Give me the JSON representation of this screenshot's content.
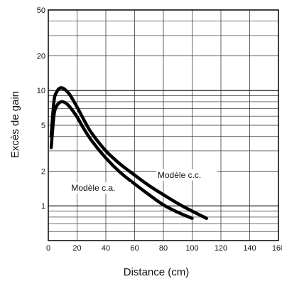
{
  "chart_data": {
    "type": "line",
    "title": "",
    "xlabel": "Distance (cm)",
    "ylabel": "Excès de gain",
    "x_ticks": [
      "0",
      "20",
      "40",
      "60",
      "80",
      "100",
      "120",
      "140",
      "160"
    ],
    "y_ticks": [
      "1",
      "2",
      "5",
      "10",
      "20",
      "50"
    ],
    "xlim": [
      0,
      160
    ],
    "ylim": [
      0.5,
      50
    ],
    "y_scale": "log",
    "grid": true,
    "series": [
      {
        "name": "Modèle c.c.",
        "x": [
          2,
          4,
          6,
          8,
          10,
          12,
          15,
          20,
          25,
          30,
          40,
          50,
          60,
          70,
          80,
          90,
          100,
          110
        ],
        "y": [
          4,
          8.2,
          9.8,
          10.5,
          10.5,
          10.1,
          9.2,
          7.2,
          5.5,
          4.3,
          3.0,
          2.3,
          1.85,
          1.5,
          1.25,
          1.05,
          0.9,
          0.78
        ]
      },
      {
        "name": "Modèle c.a.",
        "x": [
          2,
          4,
          6,
          8,
          10,
          12,
          15,
          20,
          25,
          30,
          40,
          50,
          60,
          70,
          80,
          90,
          100
        ],
        "y": [
          3.2,
          6.2,
          7.4,
          7.9,
          8.0,
          7.8,
          7.2,
          5.9,
          4.6,
          3.7,
          2.6,
          1.95,
          1.55,
          1.25,
          1.02,
          0.88,
          0.78
        ]
      }
    ],
    "annotations": [
      {
        "text": "Modèle c.c.",
        "x": 76,
        "y": 1.75
      },
      {
        "text": "Modèle c.a.",
        "x": 16,
        "y": 1.35
      }
    ]
  }
}
